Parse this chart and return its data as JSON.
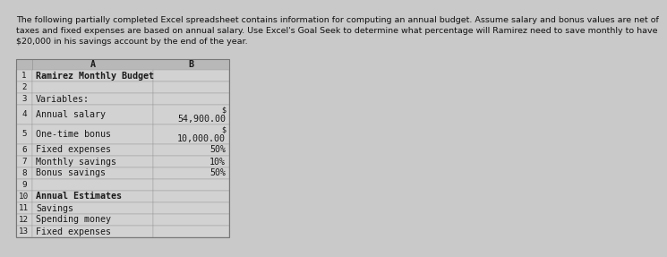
{
  "title_text": "The following partially completed Excel spreadsheet contains information for computing an annual budget. Assume salary and bonus values are net of\ntaxes and fixed expenses are based on annual salary. Use Excel's Goal Seek to determine what percentage will Ramirez need to save monthly to have\n$20,000 in his savings account by the end of the year.",
  "bg_color": "#c9c9c9",
  "header_bg": "#b8b8b8",
  "cell_bg": "#d2d2d2",
  "grid_color": "#999999",
  "col_a_label": "A",
  "col_b_label": "B",
  "rows": [
    {
      "num": "1",
      "col_a": "Ramirez Monthly Budget",
      "col_b": "",
      "a_bold": true,
      "b_prefix": false,
      "tall": false
    },
    {
      "num": "2",
      "col_a": "",
      "col_b": "",
      "a_bold": false,
      "b_prefix": false,
      "tall": false
    },
    {
      "num": "3",
      "col_a": "Variables:",
      "col_b": "",
      "a_bold": false,
      "b_prefix": false,
      "tall": false
    },
    {
      "num": "4",
      "col_a": "Annual salary",
      "col_b": "54,900.00",
      "a_bold": false,
      "b_prefix": true,
      "tall": true
    },
    {
      "num": "5",
      "col_a": "One-time bonus",
      "col_b": "10,000.00",
      "a_bold": false,
      "b_prefix": true,
      "tall": true
    },
    {
      "num": "6",
      "col_a": "Fixed expenses",
      "col_b": "50%",
      "a_bold": false,
      "b_prefix": false,
      "tall": false
    },
    {
      "num": "7",
      "col_a": "Monthly savings",
      "col_b": "10%",
      "a_bold": false,
      "b_prefix": false,
      "tall": false
    },
    {
      "num": "8",
      "col_a": "Bonus savings",
      "col_b": "50%",
      "a_bold": false,
      "b_prefix": false,
      "tall": false
    },
    {
      "num": "9",
      "col_a": "",
      "col_b": "",
      "a_bold": false,
      "b_prefix": false,
      "tall": false
    },
    {
      "num": "10",
      "col_a": "Annual Estimates",
      "col_b": "",
      "a_bold": true,
      "b_prefix": false,
      "tall": false
    },
    {
      "num": "11",
      "col_a": "Savings",
      "col_b": "",
      "a_bold": false,
      "b_prefix": false,
      "tall": false
    },
    {
      "num": "12",
      "col_a": "Spending money",
      "col_b": "",
      "a_bold": false,
      "b_prefix": false,
      "tall": false
    },
    {
      "num": "13",
      "col_a": "Fixed expenses",
      "col_b": "",
      "a_bold": false,
      "b_prefix": false,
      "tall": false
    }
  ],
  "title_fontsize": 6.8,
  "cell_fontsize": 7.2,
  "text_color": "#1a1a1a",
  "title_color": "#111111"
}
